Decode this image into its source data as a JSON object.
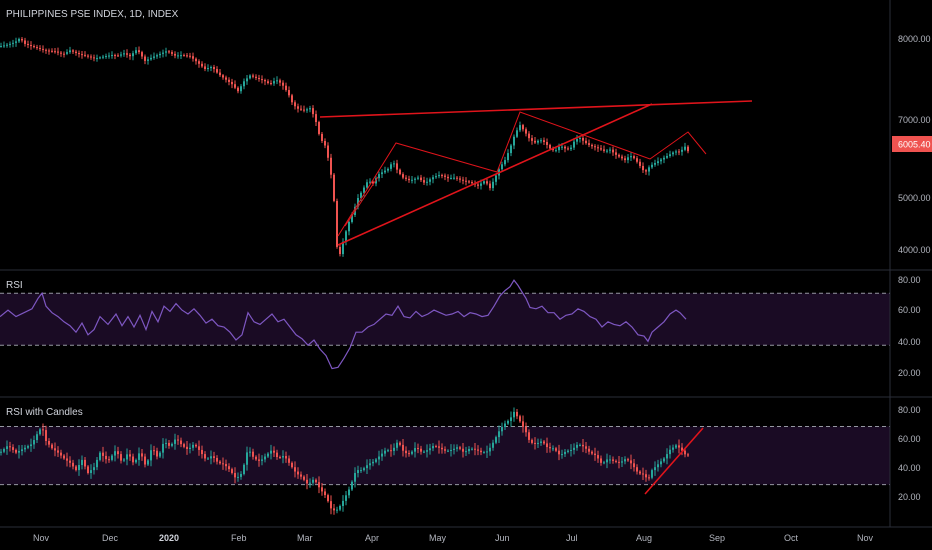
{
  "colors": {
    "background": "#000000",
    "up": "#26a69a",
    "down": "#ef5350",
    "rsi_line": "#7e57c2",
    "rsi_band": "#1a0b24",
    "trendline": "#e0141b",
    "price_tag": "#ef5350",
    "text": "#b2b5be",
    "separator": "#2a2e39"
  },
  "chart_data": [
    {
      "type": "candlestick",
      "title": "PHILIPPINES PSE INDEX, 1D, INDEX",
      "y_ticks": [
        "8000.00",
        "7000.00",
        "5000.00",
        "4000.00"
      ],
      "ylim": [
        3650,
        8650
      ],
      "last_price": "6005.40",
      "x_ticks": [
        "Nov",
        "Dec",
        "2020",
        "Feb",
        "Mar",
        "Apr",
        "May",
        "Jun",
        "Jul",
        "Aug",
        "Sep",
        "Oct",
        "Nov"
      ],
      "trendlines": "drawn (red)",
      "close_path": [
        [
          0,
          7950
        ],
        [
          8,
          7980
        ],
        [
          15,
          8020
        ],
        [
          20,
          8090
        ],
        [
          25,
          7990
        ],
        [
          35,
          7930
        ],
        [
          45,
          7880
        ],
        [
          55,
          7860
        ],
        [
          63,
          7810
        ],
        [
          70,
          7880
        ],
        [
          78,
          7820
        ],
        [
          85,
          7790
        ],
        [
          95,
          7740
        ],
        [
          105,
          7780
        ],
        [
          112,
          7800
        ],
        [
          118,
          7790
        ],
        [
          124,
          7830
        ],
        [
          130,
          7780
        ],
        [
          137,
          7900
        ],
        [
          145,
          7700
        ],
        [
          152,
          7760
        ],
        [
          160,
          7820
        ],
        [
          167,
          7870
        ],
        [
          175,
          7790
        ],
        [
          182,
          7800
        ],
        [
          190,
          7780
        ],
        [
          197,
          7680
        ],
        [
          205,
          7560
        ],
        [
          212,
          7600
        ],
        [
          218,
          7480
        ],
        [
          225,
          7390
        ],
        [
          232,
          7300
        ],
        [
          238,
          7180
        ],
        [
          244,
          7350
        ],
        [
          250,
          7450
        ],
        [
          257,
          7400
        ],
        [
          264,
          7360
        ],
        [
          270,
          7300
        ],
        [
          276,
          7380
        ],
        [
          282,
          7300
        ],
        [
          288,
          7150
        ],
        [
          293,
          6950
        ],
        [
          298,
          6880
        ],
        [
          304,
          6850
        ],
        [
          310,
          6890
        ],
        [
          315,
          6720
        ],
        [
          320,
          6380
        ],
        [
          325,
          6250
        ],
        [
          330,
          5900
        ],
        [
          334,
          5300
        ],
        [
          338,
          4250
        ],
        [
          343,
          4600
        ],
        [
          348,
          4900
        ],
        [
          353,
          5100
        ],
        [
          358,
          5350
        ],
        [
          363,
          5500
        ],
        [
          368,
          5650
        ],
        [
          373,
          5600
        ],
        [
          378,
          5750
        ],
        [
          383,
          5800
        ],
        [
          388,
          5850
        ],
        [
          393,
          5980
        ],
        [
          398,
          5800
        ],
        [
          403,
          5700
        ],
        [
          410,
          5650
        ],
        [
          418,
          5700
        ],
        [
          425,
          5600
        ],
        [
          432,
          5700
        ],
        [
          440,
          5750
        ],
        [
          448,
          5690
        ],
        [
          455,
          5700
        ],
        [
          462,
          5650
        ],
        [
          470,
          5620
        ],
        [
          478,
          5560
        ],
        [
          485,
          5650
        ],
        [
          490,
          5520
        ],
        [
          495,
          5700
        ],
        [
          500,
          5880
        ],
        [
          505,
          6000
        ],
        [
          510,
          6200
        ],
        [
          515,
          6450
        ],
        [
          520,
          6600
        ],
        [
          525,
          6480
        ],
        [
          530,
          6350
        ],
        [
          535,
          6300
        ],
        [
          540,
          6350
        ],
        [
          545,
          6300
        ],
        [
          550,
          6200
        ],
        [
          555,
          6150
        ],
        [
          560,
          6250
        ],
        [
          565,
          6200
        ],
        [
          570,
          6180
        ],
        [
          575,
          6350
        ],
        [
          580,
          6380
        ],
        [
          585,
          6300
        ],
        [
          590,
          6250
        ],
        [
          595,
          6220
        ],
        [
          600,
          6190
        ],
        [
          605,
          6150
        ],
        [
          610,
          6180
        ],
        [
          615,
          6100
        ],
        [
          620,
          6050
        ],
        [
          625,
          6000
        ],
        [
          630,
          6080
        ],
        [
          635,
          6020
        ],
        [
          640,
          5900
        ],
        [
          645,
          5780
        ],
        [
          650,
          5900
        ],
        [
          655,
          5950
        ],
        [
          660,
          6000
        ],
        [
          665,
          6050
        ],
        [
          670,
          6100
        ],
        [
          675,
          6150
        ],
        [
          680,
          6140
        ],
        [
          685,
          6230
        ],
        [
          690,
          6100
        ]
      ]
    },
    {
      "type": "line",
      "title": "RSI",
      "y_ticks": [
        "80.00",
        "60.00",
        "40.00",
        "20.00"
      ],
      "ylim": [
        5,
        87
      ],
      "bands": [
        30,
        70
      ],
      "values_path": [
        [
          0,
          52
        ],
        [
          8,
          57
        ],
        [
          16,
          52
        ],
        [
          24,
          55
        ],
        [
          32,
          58
        ],
        [
          38,
          66
        ],
        [
          42,
          70
        ],
        [
          46,
          60
        ],
        [
          52,
          55
        ],
        [
          58,
          52
        ],
        [
          64,
          48
        ],
        [
          70,
          45
        ],
        [
          76,
          40
        ],
        [
          82,
          47
        ],
        [
          88,
          38
        ],
        [
          94,
          42
        ],
        [
          100,
          52
        ],
        [
          108,
          46
        ],
        [
          116,
          54
        ],
        [
          122,
          45
        ],
        [
          128,
          52
        ],
        [
          134,
          44
        ],
        [
          140,
          53
        ],
        [
          146,
          42
        ],
        [
          152,
          56
        ],
        [
          158,
          48
        ],
        [
          164,
          60
        ],
        [
          170,
          56
        ],
        [
          176,
          62
        ],
        [
          182,
          57
        ],
        [
          188,
          54
        ],
        [
          194,
          58
        ],
        [
          200,
          53
        ],
        [
          206,
          47
        ],
        [
          212,
          50
        ],
        [
          218,
          45
        ],
        [
          224,
          44
        ],
        [
          230,
          40
        ],
        [
          236,
          34
        ],
        [
          242,
          38
        ],
        [
          248,
          55
        ],
        [
          254,
          48
        ],
        [
          260,
          46
        ],
        [
          266,
          50
        ],
        [
          272,
          54
        ],
        [
          278,
          48
        ],
        [
          284,
          50
        ],
        [
          290,
          44
        ],
        [
          296,
          38
        ],
        [
          302,
          35
        ],
        [
          308,
          30
        ],
        [
          314,
          34
        ],
        [
          320,
          27
        ],
        [
          326,
          22
        ],
        [
          332,
          12
        ],
        [
          338,
          13
        ],
        [
          344,
          20
        ],
        [
          350,
          28
        ],
        [
          356,
          40
        ],
        [
          362,
          40
        ],
        [
          368,
          44
        ],
        [
          374,
          46
        ],
        [
          380,
          50
        ],
        [
          386,
          54
        ],
        [
          392,
          53
        ],
        [
          398,
          60
        ],
        [
          404,
          52
        ],
        [
          410,
          51
        ],
        [
          416,
          56
        ],
        [
          422,
          52
        ],
        [
          428,
          54
        ],
        [
          434,
          57
        ],
        [
          440,
          55
        ],
        [
          446,
          53
        ],
        [
          452,
          54
        ],
        [
          458,
          56
        ],
        [
          464,
          52
        ],
        [
          470,
          55
        ],
        [
          476,
          54
        ],
        [
          482,
          52
        ],
        [
          488,
          53
        ],
        [
          494,
          60
        ],
        [
          500,
          68
        ],
        [
          505,
          72
        ],
        [
          510,
          75
        ],
        [
          514,
          80
        ],
        [
          518,
          76
        ],
        [
          522,
          71
        ],
        [
          526,
          66
        ],
        [
          530,
          59
        ],
        [
          536,
          58
        ],
        [
          542,
          60
        ],
        [
          548,
          55
        ],
        [
          554,
          55
        ],
        [
          560,
          50
        ],
        [
          566,
          53
        ],
        [
          572,
          54
        ],
        [
          578,
          58
        ],
        [
          584,
          56
        ],
        [
          590,
          52
        ],
        [
          596,
          50
        ],
        [
          602,
          44
        ],
        [
          608,
          48
        ],
        [
          614,
          46
        ],
        [
          620,
          45
        ],
        [
          626,
          48
        ],
        [
          632,
          44
        ],
        [
          638,
          38
        ],
        [
          644,
          37
        ],
        [
          648,
          33
        ],
        [
          652,
          40
        ],
        [
          658,
          44
        ],
        [
          664,
          48
        ],
        [
          670,
          54
        ],
        [
          676,
          57
        ],
        [
          680,
          55
        ],
        [
          686,
          50
        ]
      ]
    },
    {
      "type": "candlestick",
      "title": "RSI with Candles",
      "y_ticks": [
        "80.00",
        "60.00",
        "40.00",
        "20.00"
      ],
      "ylim": [
        5,
        87
      ],
      "bands": [
        30,
        70
      ]
    }
  ]
}
